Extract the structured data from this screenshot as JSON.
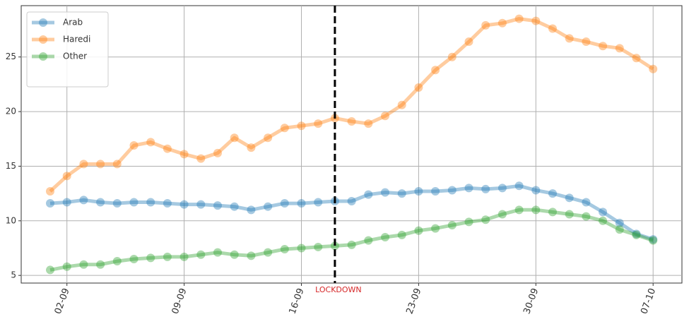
{
  "chart_data": {
    "type": "line",
    "categories": [
      null,
      "02-09",
      null,
      null,
      null,
      null,
      null,
      null,
      "09-09",
      null,
      null,
      null,
      null,
      null,
      null,
      "16-09",
      null,
      null,
      null,
      null,
      null,
      null,
      "23-09",
      null,
      null,
      null,
      null,
      null,
      null,
      "30-09",
      null,
      null,
      null,
      null,
      null,
      null,
      "07-10"
    ],
    "series": [
      {
        "name": "Arab",
        "color": "#1f77b4",
        "values": [
          11.6,
          11.7,
          11.9,
          11.7,
          11.6,
          11.7,
          11.7,
          11.6,
          11.5,
          11.5,
          11.4,
          11.3,
          11.0,
          11.3,
          11.6,
          11.6,
          11.7,
          11.8,
          11.8,
          12.4,
          12.6,
          12.5,
          12.7,
          12.7,
          12.8,
          13.0,
          12.9,
          13.0,
          13.2,
          12.8,
          12.5,
          12.1,
          11.7,
          10.8,
          9.8,
          8.8,
          8.3
        ]
      },
      {
        "name": "Haredi",
        "color": "#ff7f0e",
        "values": [
          12.7,
          14.1,
          15.2,
          15.2,
          15.2,
          16.9,
          17.2,
          16.6,
          16.1,
          15.7,
          16.2,
          17.6,
          16.7,
          17.6,
          18.5,
          18.7,
          18.9,
          19.4,
          19.1,
          18.9,
          19.6,
          20.6,
          22.2,
          23.8,
          25.0,
          26.4,
          27.9,
          28.1,
          28.5,
          28.3,
          27.6,
          26.7,
          26.4,
          26.0,
          25.8,
          24.9,
          23.9
        ]
      },
      {
        "name": "Other",
        "color": "#2ca02c",
        "values": [
          5.5,
          5.8,
          6.0,
          6.0,
          6.3,
          6.5,
          6.6,
          6.7,
          6.7,
          6.9,
          7.1,
          6.9,
          6.8,
          7.1,
          7.4,
          7.5,
          7.6,
          7.7,
          7.8,
          8.2,
          8.5,
          8.7,
          9.1,
          9.3,
          9.6,
          9.9,
          10.1,
          10.6,
          11.0,
          11.0,
          10.8,
          10.6,
          10.4,
          10.0,
          9.2,
          8.7,
          8.2
        ]
      }
    ],
    "ylim": [
      4.3,
      29.7
    ],
    "yticks": [
      5,
      10,
      15,
      20,
      25
    ],
    "grid": true,
    "legend": "upper left",
    "vline": {
      "at": 17,
      "label": "LOCKDOWN",
      "color": "#000000",
      "label_color": "#d62728"
    }
  }
}
